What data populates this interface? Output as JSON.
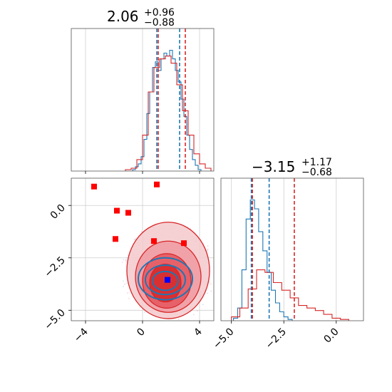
{
  "chart_data": [
    {
      "panel": "top-left",
      "type": "line",
      "subtype": "histogram",
      "title": {
        "value": "2.06",
        "plus": "+0.96",
        "minus": "−0.88"
      },
      "xlim": [
        -5,
        5
      ],
      "grid": true,
      "series": [
        {
          "color": "#1f77b4",
          "bins_x": [
            -0.6,
            -0.4,
            -0.2,
            0.0,
            0.2,
            0.4,
            0.6,
            0.8,
            1.0,
            1.2,
            1.4,
            1.6,
            1.8,
            2.0,
            2.2,
            2.4,
            2.6,
            2.8,
            3.0,
            3.2,
            3.4,
            3.6,
            3.8,
            4.0
          ],
          "values": [
            0.01,
            0.03,
            0.05,
            0.1,
            0.22,
            0.4,
            0.55,
            0.72,
            0.76,
            0.7,
            0.78,
            0.82,
            0.8,
            0.84,
            0.78,
            0.7,
            0.62,
            0.5,
            0.38,
            0.25,
            0.15,
            0.08,
            0.04,
            0.01
          ]
        },
        {
          "color": "#d62728",
          "bins_x": [
            -1.0,
            -0.6,
            -0.2,
            0.2,
            0.6,
            1.0,
            1.4,
            1.8,
            2.2,
            2.6,
            3.0,
            3.4,
            3.8,
            4.2,
            4.6
          ],
          "values": [
            0.01,
            0.02,
            0.08,
            0.25,
            0.55,
            0.72,
            0.78,
            0.8,
            0.75,
            0.6,
            0.42,
            0.25,
            0.12,
            0.05,
            0.02
          ]
        }
      ],
      "quantile_lines": [
        {
          "color": "#1f77b4",
          "x": [
            1.0,
            2.6
          ]
        },
        {
          "color": "#d62728",
          "x": [
            1.1,
            3.0
          ]
        }
      ]
    },
    {
      "panel": "bottom-left",
      "type": "scatter",
      "subtype": "2d-density-contour",
      "xlim": [
        -5,
        5
      ],
      "ylim": [
        -5.5,
        1.3
      ],
      "xticks": [
        "−4",
        "0",
        "4"
      ],
      "yticks": [
        "0.0",
        "−2.5",
        "−5.0"
      ],
      "grid": true,
      "red_points": [
        {
          "x": -3.4,
          "y": 0.9
        },
        {
          "x": 1.0,
          "y": 1.0
        },
        {
          "x": -1.8,
          "y": -0.25
        },
        {
          "x": -1.0,
          "y": -0.35
        },
        {
          "x": -1.9,
          "y": -1.6
        },
        {
          "x": 0.8,
          "y": -1.7
        },
        {
          "x": 2.9,
          "y": -1.8
        }
      ],
      "blue_points": [
        {
          "x": 1.75,
          "y": -3.55
        }
      ],
      "red_contours": [
        {
          "cx": 1.8,
          "cy": -3.1,
          "rx": 2.9,
          "ry": 2.3
        },
        {
          "cx": 1.8,
          "cy": -3.4,
          "rx": 2.3,
          "ry": 1.7
        },
        {
          "cx": 1.7,
          "cy": -3.6,
          "rx": 1.7,
          "ry": 1.3
        },
        {
          "cx": 1.6,
          "cy": -3.7,
          "rx": 1.1,
          "ry": 0.9
        }
      ],
      "blue_contours": [
        {
          "cx": 1.6,
          "cy": -3.5,
          "rx": 1.9,
          "ry": 1.0
        },
        {
          "cx": 1.6,
          "cy": -3.55,
          "rx": 1.4,
          "ry": 0.7
        },
        {
          "cx": 1.6,
          "cy": -3.6,
          "rx": 0.9,
          "ry": 0.45
        }
      ]
    },
    {
      "panel": "bottom-right",
      "type": "line",
      "subtype": "histogram",
      "title": {
        "value": "−3.15",
        "plus": "+1.17",
        "minus": "−0.68"
      },
      "xlim": [
        -5.5,
        1.3
      ],
      "xticks": [
        "−5.0",
        "−2.5",
        "0.0"
      ],
      "grid": true,
      "series": [
        {
          "color": "#1f77b4",
          "bins_x": [
            -4.8,
            -4.6,
            -4.4,
            -4.2,
            -4.0,
            -3.8,
            -3.6,
            -3.4,
            -3.2,
            -3.0,
            -2.8,
            -2.6,
            -2.4,
            -2.2
          ],
          "values": [
            0.02,
            0.1,
            0.4,
            0.8,
            0.95,
            0.88,
            0.7,
            0.55,
            0.38,
            0.24,
            0.14,
            0.07,
            0.03,
            0.01
          ]
        },
        {
          "color": "#d62728",
          "bins_x": [
            -4.8,
            -4.4,
            -4.0,
            -3.6,
            -3.2,
            -2.8,
            -2.4,
            -2.0,
            -1.6,
            -1.2,
            -0.8,
            -0.4,
            0.0,
            0.4
          ],
          "values": [
            0.03,
            0.1,
            0.25,
            0.4,
            0.38,
            0.3,
            0.24,
            0.18,
            0.12,
            0.1,
            0.08,
            0.05,
            0.02,
            0.01
          ]
        }
      ],
      "quantile_lines": [
        {
          "color": "#1f77b4",
          "x": [
            -4.05,
            -3.2
          ]
        },
        {
          "color": "#d62728",
          "x": [
            -4.0,
            -2.0
          ]
        }
      ]
    }
  ]
}
